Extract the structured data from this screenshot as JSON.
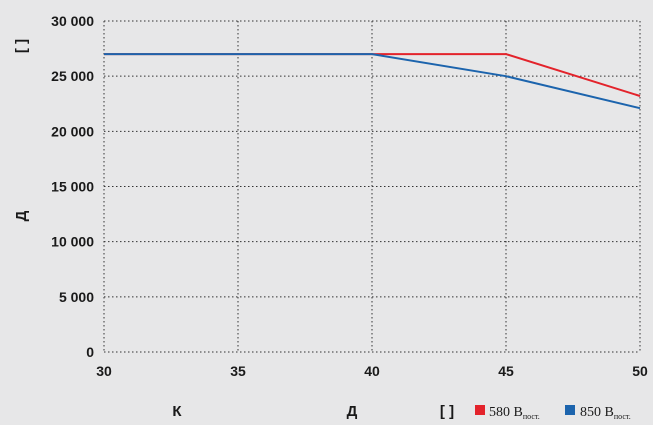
{
  "chart_data": {
    "type": "line",
    "x_ticks": [
      "30",
      "35",
      "40",
      "45",
      "50"
    ],
    "y_ticks": [
      "0",
      "5 000",
      "10 000",
      "15 000",
      "20 000",
      "25 000",
      "30 000"
    ],
    "xlim": [
      30,
      50
    ],
    "ylim": [
      0,
      30000
    ],
    "ylabel_top": "[    ]",
    "ylabel_main": "Д",
    "xlabel_left": "К",
    "xlabel_right": "Д",
    "legend_bracket": "[    ]",
    "grid": true,
    "series": [
      {
        "name": "580 В",
        "name_sub": "пост.",
        "color": "#e3232b",
        "x": [
          30,
          40,
          45,
          50
        ],
        "y": [
          27000,
          27000,
          27000,
          23200
        ]
      },
      {
        "name": "850 В",
        "name_sub": "пост.",
        "color": "#1c64ad",
        "x": [
          30,
          40,
          45,
          50
        ],
        "y": [
          27000,
          27000,
          25000,
          22100
        ]
      }
    ]
  }
}
